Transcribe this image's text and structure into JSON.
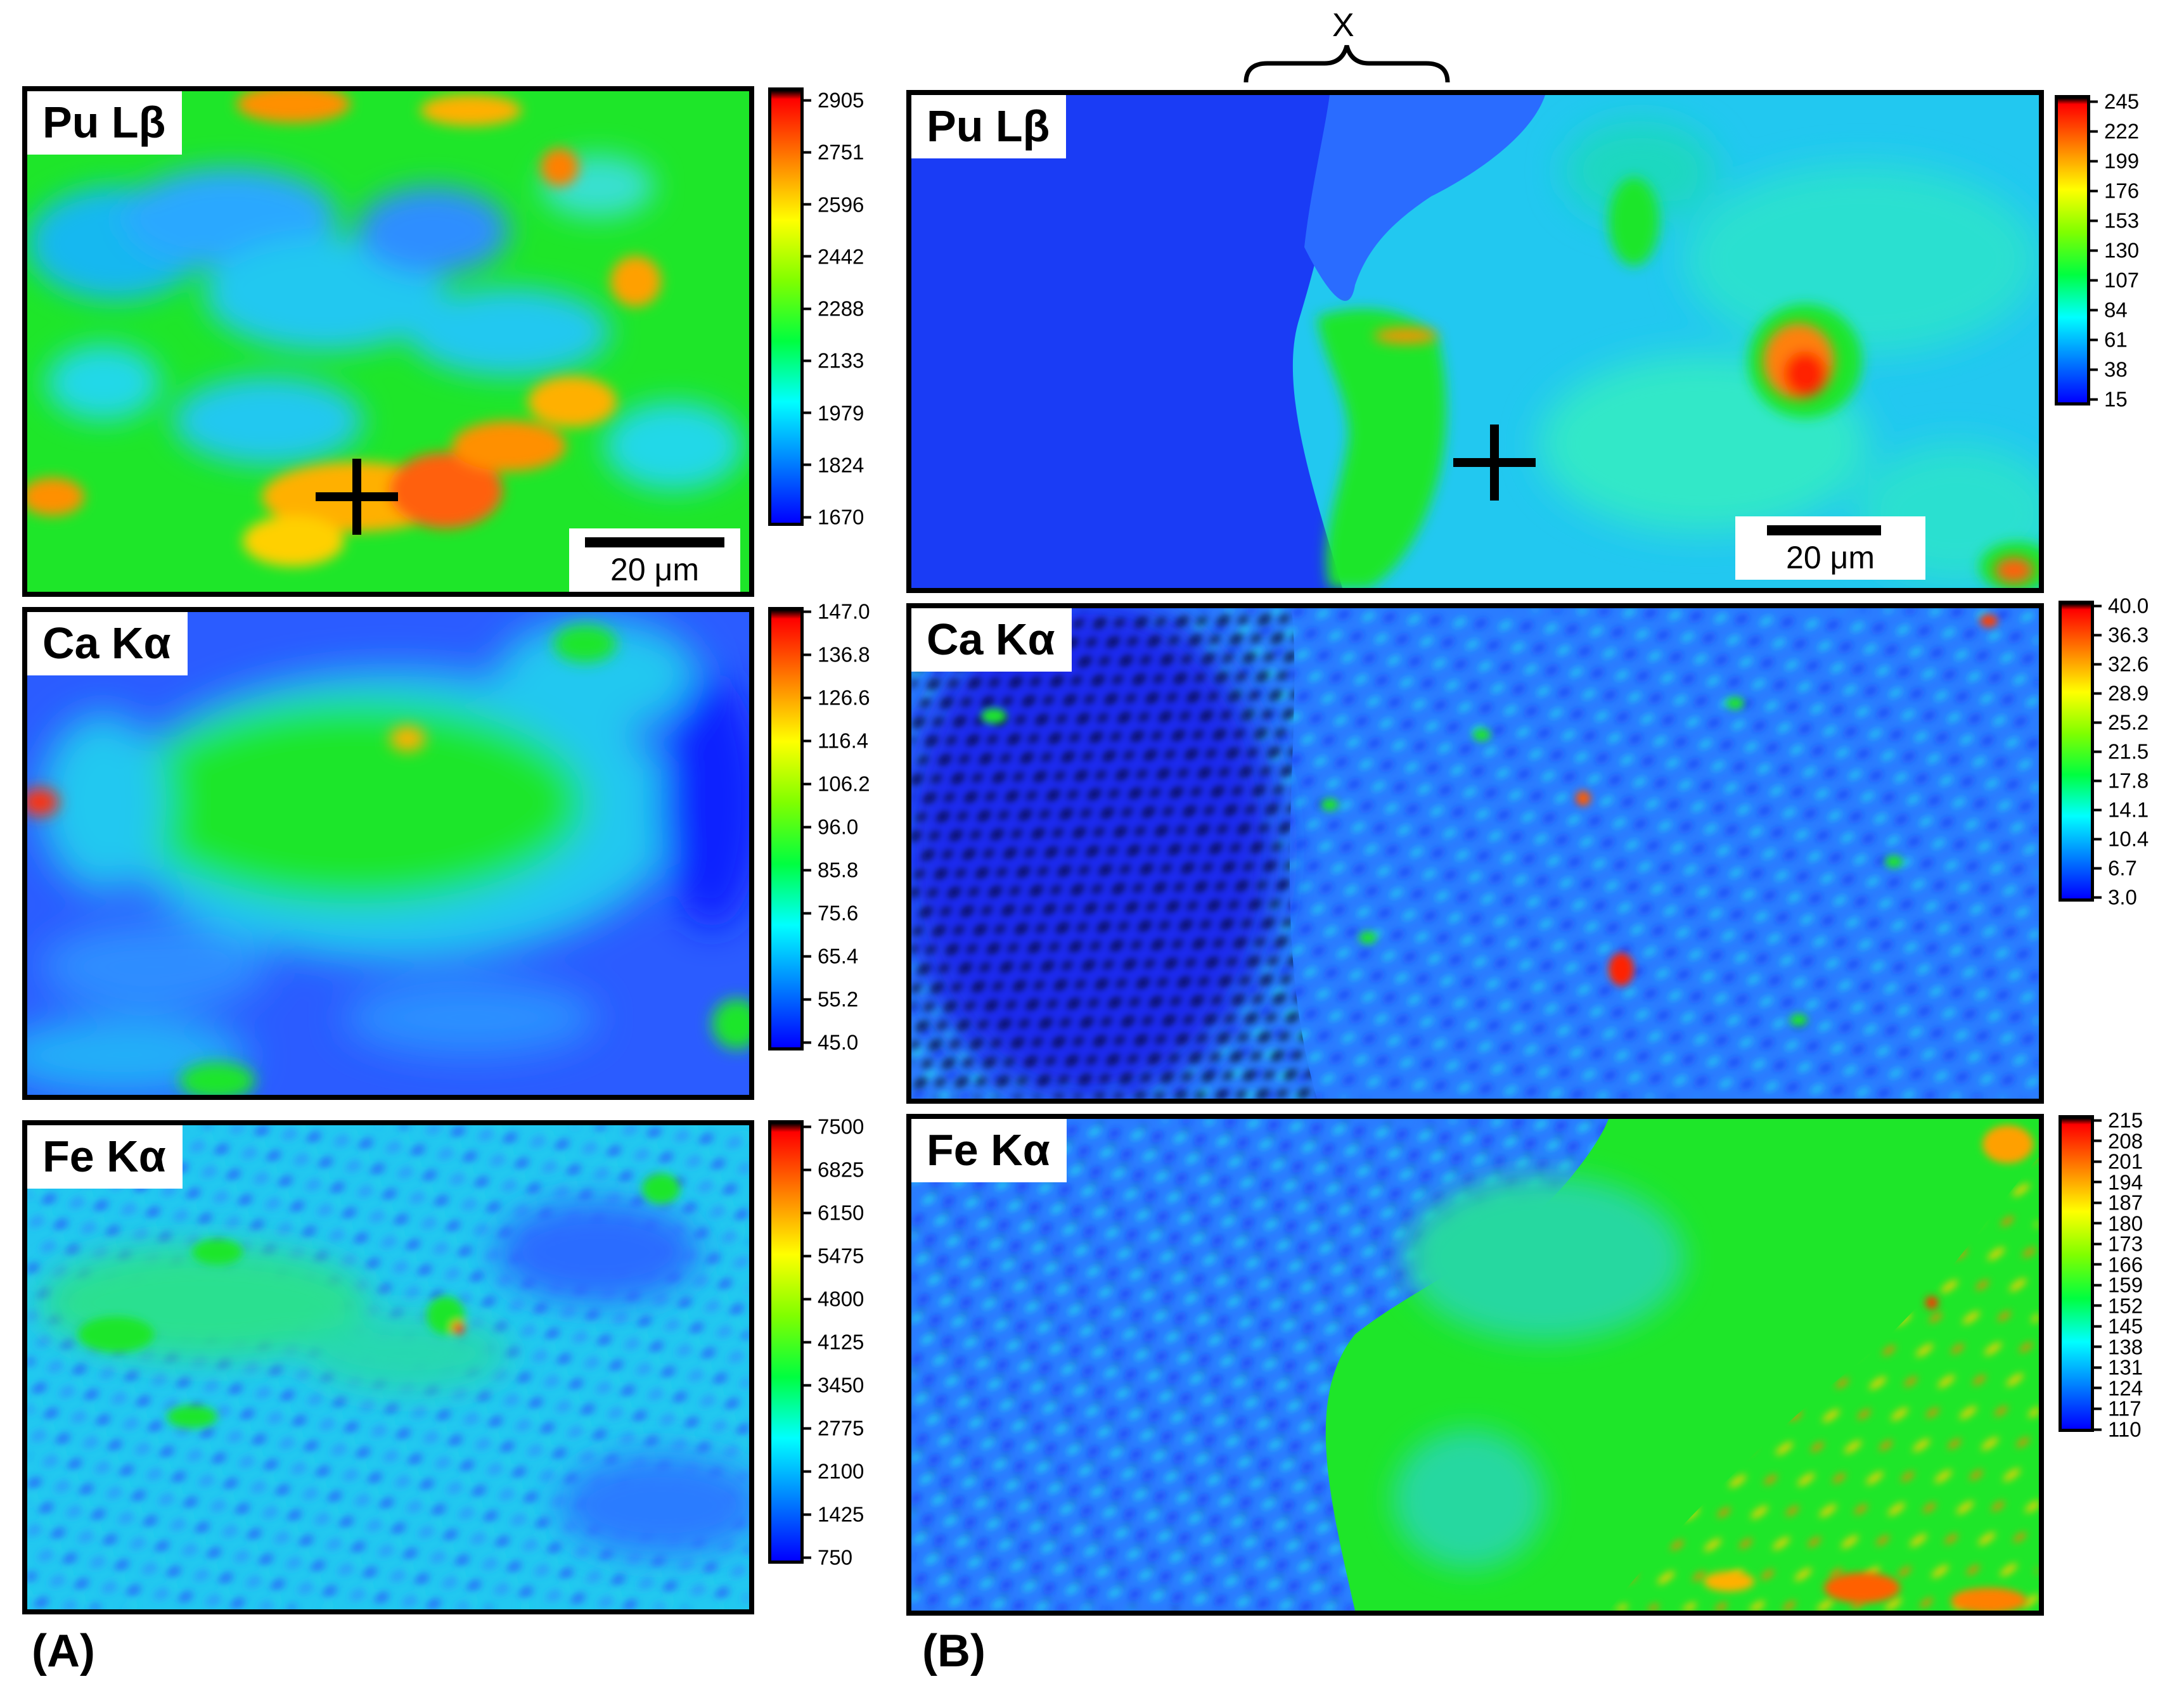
{
  "panels": {
    "A": "(A)",
    "B": "(B)"
  },
  "brace_label": "X",
  "scale_label": "20 μm",
  "maps": [
    {
      "id": "a-pu",
      "element": "Pu Lβ",
      "style": "pu-a",
      "colorbar_ticks": [
        "2905",
        "2751",
        "2596",
        "2442",
        "2288",
        "2133",
        "1979",
        "1824",
        "1670"
      ]
    },
    {
      "id": "a-ca",
      "element": "Ca Kα",
      "style": "ca-a",
      "colorbar_ticks": [
        "147.0",
        "136.8",
        "126.6",
        "116.4",
        "106.2",
        "96.0",
        "85.8",
        "75.6",
        "65.4",
        "55.2",
        "45.0"
      ]
    },
    {
      "id": "a-fe",
      "element": "Fe Kα",
      "style": "fe-a",
      "colorbar_ticks": [
        "7500",
        "6825",
        "6150",
        "5475",
        "4800",
        "4125",
        "3450",
        "2775",
        "2100",
        "1425",
        "750"
      ]
    },
    {
      "id": "b-pu",
      "element": "Pu Lβ",
      "style": "pu-b",
      "colorbar_ticks": [
        "245",
        "222",
        "199",
        "176",
        "153",
        "130",
        "107",
        "84",
        "61",
        "38",
        "15"
      ]
    },
    {
      "id": "b-ca",
      "element": "Ca Kα",
      "style": "ca-b",
      "colorbar_ticks": [
        "40.0",
        "36.3",
        "32.6",
        "28.9",
        "25.2",
        "21.5",
        "17.8",
        "14.1",
        "10.4",
        "6.7",
        "3.0"
      ]
    },
    {
      "id": "b-fe",
      "element": "Fe Kα",
      "style": "fe-b",
      "colorbar_ticks": [
        "215",
        "208",
        "201",
        "194",
        "187",
        "180",
        "173",
        "166",
        "159",
        "152",
        "145",
        "138",
        "131",
        "124",
        "117",
        "110"
      ]
    }
  ],
  "colors": {
    "jet": [
      "#0000ff",
      "#0080ff",
      "#00ffff",
      "#00ff40",
      "#80ff00",
      "#ffff00",
      "#ff8000",
      "#ff0000"
    ],
    "max": "#000000"
  }
}
